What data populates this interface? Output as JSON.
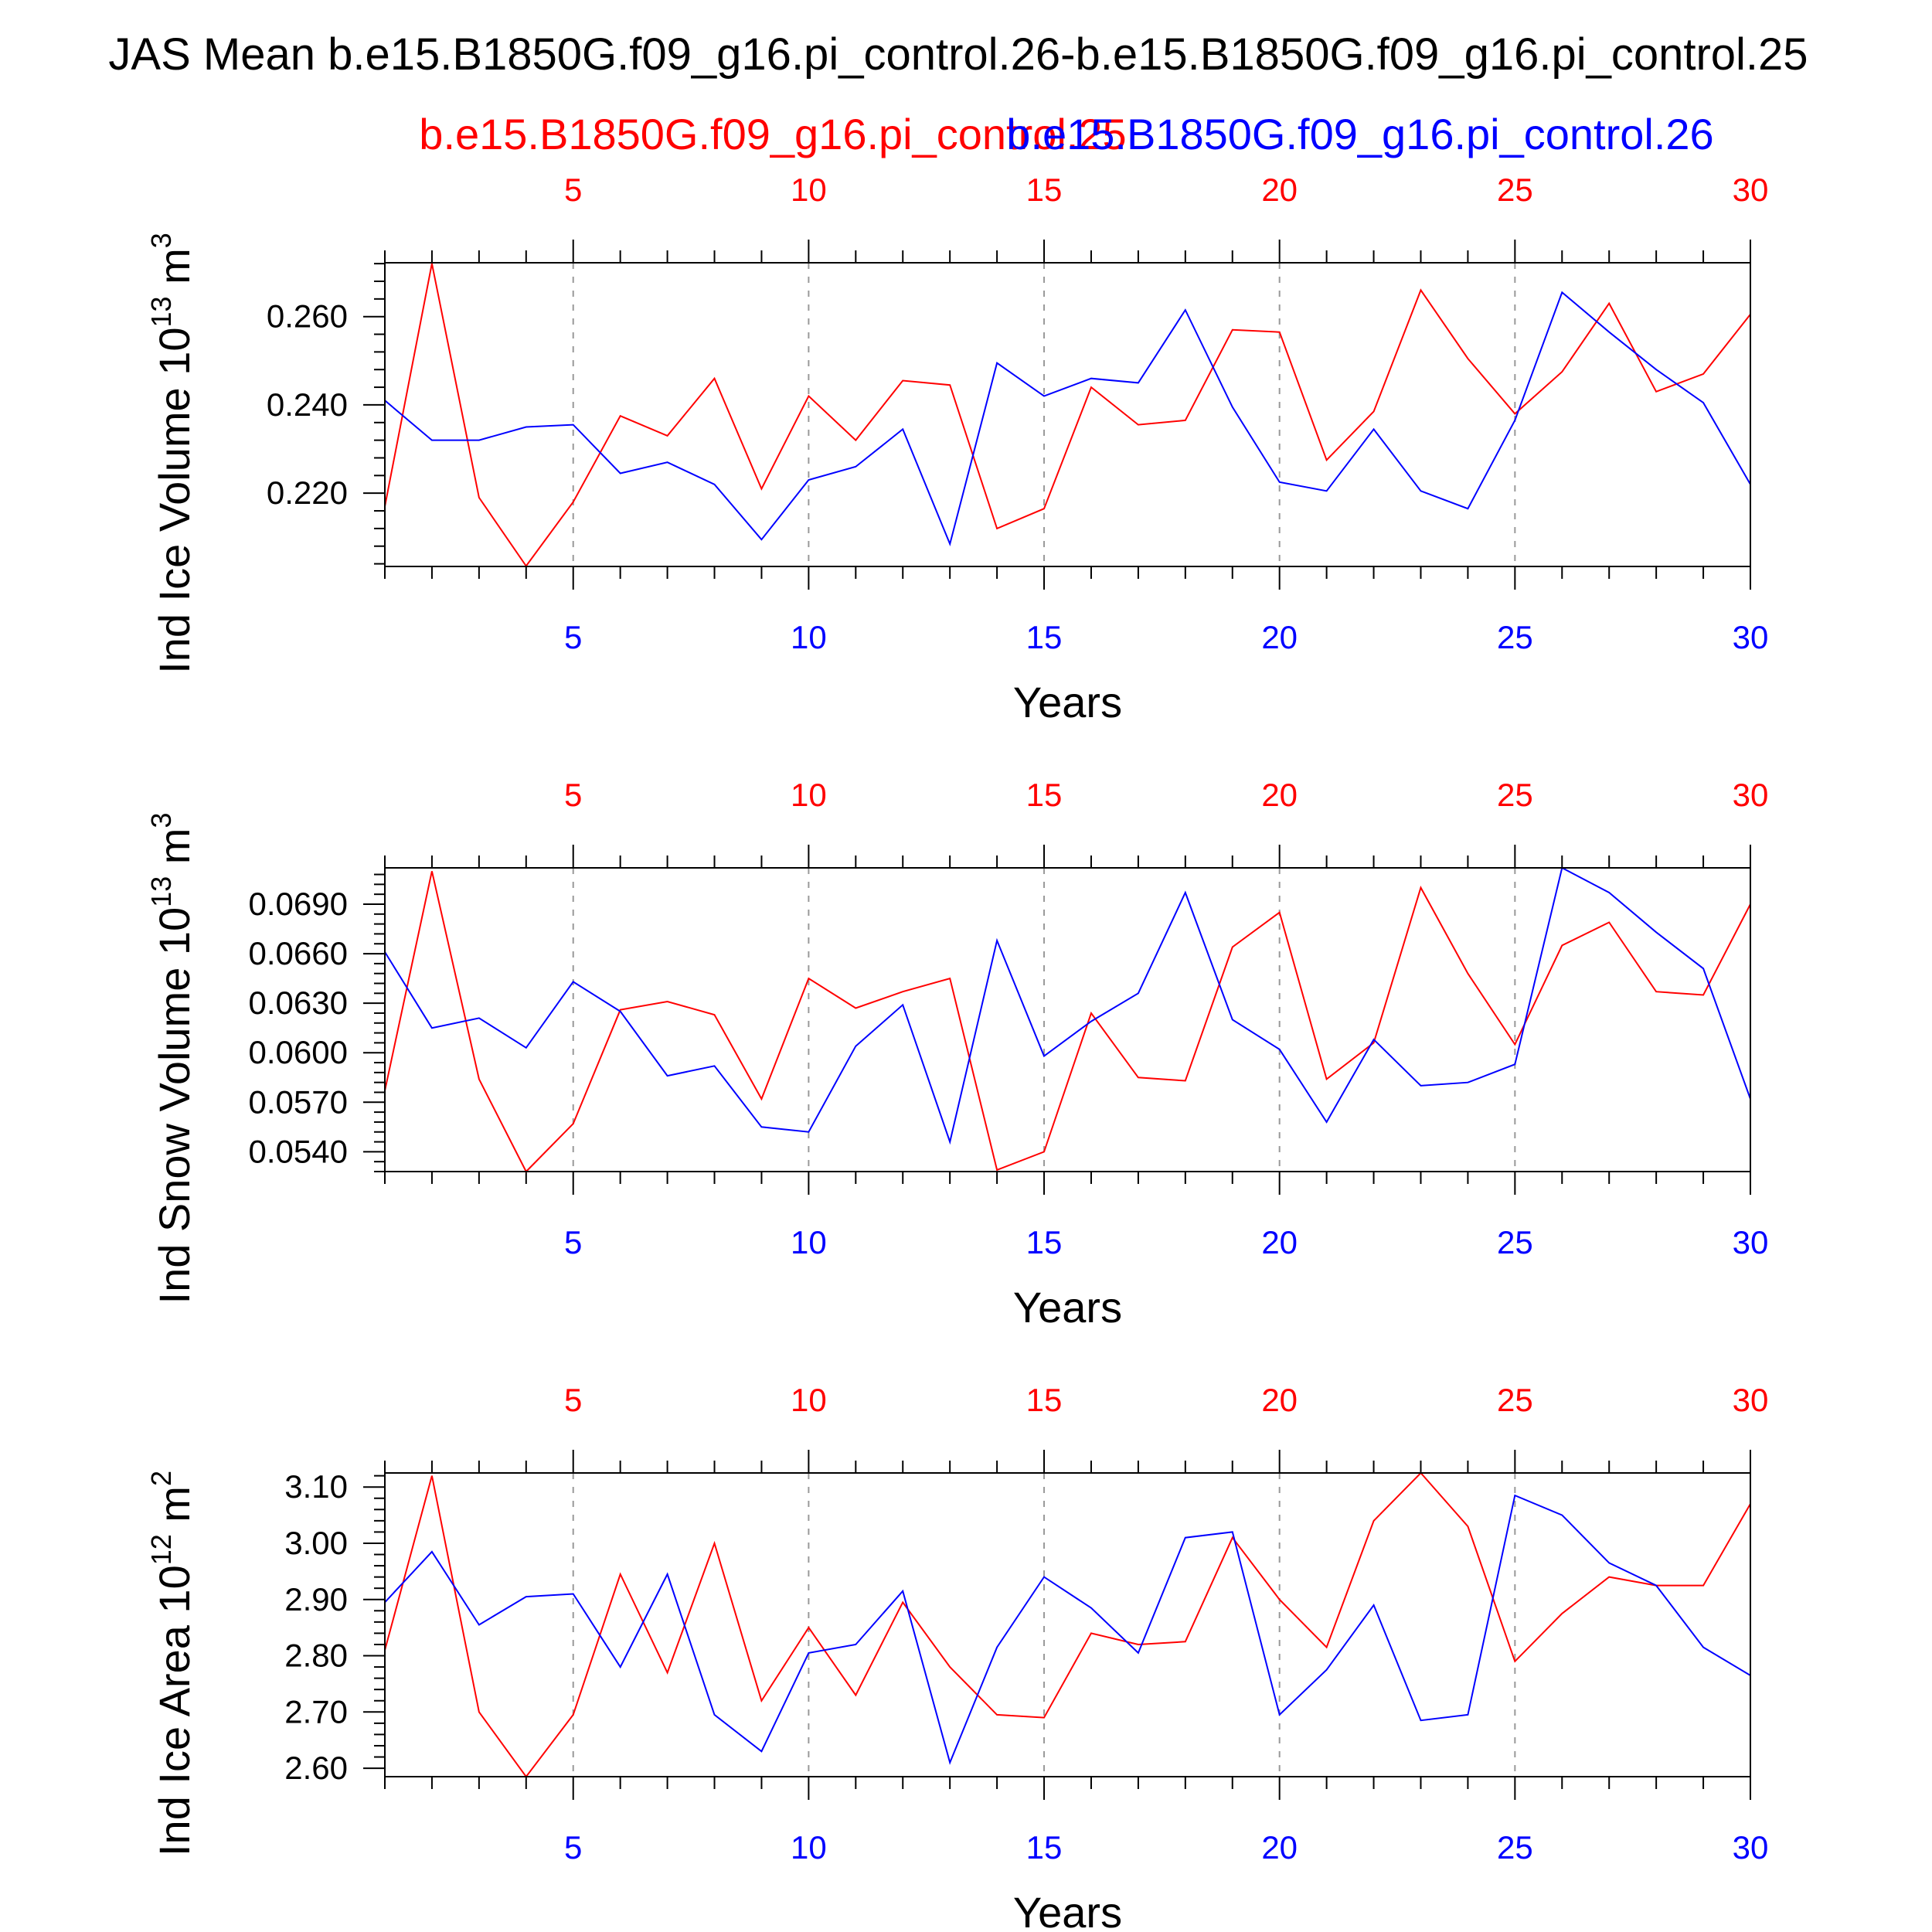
{
  "title": "JAS Mean b.e15.B1850G.f09_g16.pi_control.26-b.e15.B1850G.f09_g16.pi_control.25",
  "legend": {
    "red_label": "b.e15.B1850G.f09_g16.pi_control.25",
    "blue_label": "b.e15.B1850G.f09_g16.pi_control.26"
  },
  "colors": {
    "series_red": "#ff0000",
    "series_blue": "#0000ff",
    "axis": "#000000",
    "grid": "#999999"
  },
  "chart_data": [
    {
      "type": "line",
      "ylabel": "Ind Ice Volume 10",
      "ylabel_exp": "13",
      "ylabel_unit": " m",
      "ylabel_unit_exp": "3",
      "xlabel": "Years",
      "xlim": [
        1,
        30
      ],
      "ylim": [
        0.2034,
        0.2722
      ],
      "yticks": [
        "0.220",
        "0.240",
        "0.260"
      ],
      "ytick_values": [
        0.22,
        0.24,
        0.26
      ],
      "xticks": [
        5,
        10,
        15,
        20,
        25,
        30
      ],
      "x": [
        1,
        2,
        3,
        4,
        5,
        6,
        7,
        8,
        9,
        10,
        11,
        12,
        13,
        14,
        15,
        16,
        17,
        18,
        19,
        20,
        21,
        22,
        23,
        24,
        25,
        26,
        27,
        28,
        29,
        30
      ],
      "series": [
        {
          "name": "b.e15.B1850G.f09_g16.pi_control.25",
          "color": "#ff0000",
          "values": [
            0.217,
            0.272,
            0.219,
            0.2035,
            0.218,
            0.2375,
            0.233,
            0.246,
            0.221,
            0.242,
            0.232,
            0.2455,
            0.2445,
            0.212,
            0.2165,
            0.244,
            0.2355,
            0.2365,
            0.257,
            0.2565,
            0.2275,
            0.2385,
            0.266,
            0.2505,
            0.238,
            0.2475,
            0.263,
            0.243,
            0.247,
            0.2605
          ]
        },
        {
          "name": "b.e15.B1850G.f09_g16.pi_control.26",
          "color": "#0000ff",
          "values": [
            0.241,
            0.232,
            0.232,
            0.235,
            0.2355,
            0.2245,
            0.227,
            0.222,
            0.2095,
            0.223,
            0.226,
            0.2345,
            0.2085,
            0.2495,
            0.242,
            0.246,
            0.245,
            0.2615,
            0.2395,
            0.2225,
            0.2205,
            0.2345,
            0.2205,
            0.2165,
            0.2365,
            0.2655,
            0.2565,
            0.248,
            0.2405,
            0.222
          ]
        }
      ]
    },
    {
      "type": "line",
      "ylabel": "Ind Snow Volume 10",
      "ylabel_exp": "13",
      "ylabel_unit": " m",
      "ylabel_unit_exp": "3",
      "xlabel": "Years",
      "xlim": [
        1,
        30
      ],
      "ylim": [
        0.0528,
        0.0712
      ],
      "yticks": [
        "0.0540",
        "0.0570",
        "0.0600",
        "0.0630",
        "0.0660",
        "0.0690"
      ],
      "ytick_values": [
        0.054,
        0.057,
        0.06,
        0.063,
        0.066,
        0.069
      ],
      "xticks": [
        5,
        10,
        15,
        20,
        25,
        30
      ],
      "x": [
        1,
        2,
        3,
        4,
        5,
        6,
        7,
        8,
        9,
        10,
        11,
        12,
        13,
        14,
        15,
        16,
        17,
        18,
        19,
        20,
        21,
        22,
        23,
        24,
        25,
        26,
        27,
        28,
        29,
        30
      ],
      "series": [
        {
          "name": "b.e15.B1850G.f09_g16.pi_control.25",
          "color": "#ff0000",
          "values": [
            0.0577,
            0.071,
            0.0584,
            0.0528,
            0.0557,
            0.0626,
            0.0631,
            0.0623,
            0.0572,
            0.0645,
            0.0627,
            0.0637,
            0.0645,
            0.0529,
            0.054,
            0.0624,
            0.0585,
            0.0583,
            0.0664,
            0.0685,
            0.0584,
            0.0606,
            0.07,
            0.0648,
            0.0605,
            0.0665,
            0.0679,
            0.0637,
            0.0635,
            0.069
          ]
        },
        {
          "name": "b.e15.B1850G.f09_g16.pi_control.26",
          "color": "#0000ff",
          "values": [
            0.0661,
            0.0615,
            0.0621,
            0.0603,
            0.0643,
            0.0625,
            0.0586,
            0.0592,
            0.0555,
            0.0552,
            0.0604,
            0.0629,
            0.0546,
            0.0668,
            0.0598,
            0.0619,
            0.0636,
            0.0697,
            0.062,
            0.0602,
            0.0558,
            0.0608,
            0.058,
            0.0582,
            0.0593,
            0.0712,
            0.0697,
            0.0673,
            0.0651,
            0.0572
          ]
        }
      ]
    },
    {
      "type": "line",
      "ylabel": "Ind Ice Area 10",
      "ylabel_exp": "12",
      "ylabel_unit": " m",
      "ylabel_unit_exp": "2",
      "xlabel": "Years",
      "xlim": [
        1,
        30
      ],
      "ylim": [
        2.585,
        3.125
      ],
      "yticks": [
        "2.60",
        "2.70",
        "2.80",
        "2.90",
        "3.00",
        "3.10"
      ],
      "ytick_values": [
        2.6,
        2.7,
        2.8,
        2.9,
        3.0,
        3.1
      ],
      "xticks": [
        5,
        10,
        15,
        20,
        25,
        30
      ],
      "x": [
        1,
        2,
        3,
        4,
        5,
        6,
        7,
        8,
        9,
        10,
        11,
        12,
        13,
        14,
        15,
        16,
        17,
        18,
        19,
        20,
        21,
        22,
        23,
        24,
        25,
        26,
        27,
        28,
        29,
        30
      ],
      "series": [
        {
          "name": "b.e15.B1850G.f09_g16.pi_control.25",
          "color": "#ff0000",
          "values": [
            2.81,
            3.12,
            2.7,
            2.585,
            2.695,
            2.945,
            2.77,
            3.0,
            2.72,
            2.85,
            2.73,
            2.895,
            2.78,
            2.695,
            2.69,
            2.84,
            2.82,
            2.825,
            3.01,
            2.9,
            2.815,
            3.04,
            3.125,
            3.03,
            2.79,
            2.875,
            2.94,
            2.925,
            2.925,
            3.07
          ]
        },
        {
          "name": "b.e15.B1850G.f09_g16.pi_control.26",
          "color": "#0000ff",
          "values": [
            2.895,
            2.985,
            2.855,
            2.905,
            2.91,
            2.78,
            2.945,
            2.695,
            2.63,
            2.805,
            2.82,
            2.915,
            2.61,
            2.815,
            2.94,
            2.885,
            2.805,
            3.01,
            3.02,
            2.695,
            2.775,
            2.89,
            2.685,
            2.695,
            3.085,
            3.05,
            2.965,
            2.925,
            2.815,
            2.765
          ]
        }
      ]
    }
  ]
}
